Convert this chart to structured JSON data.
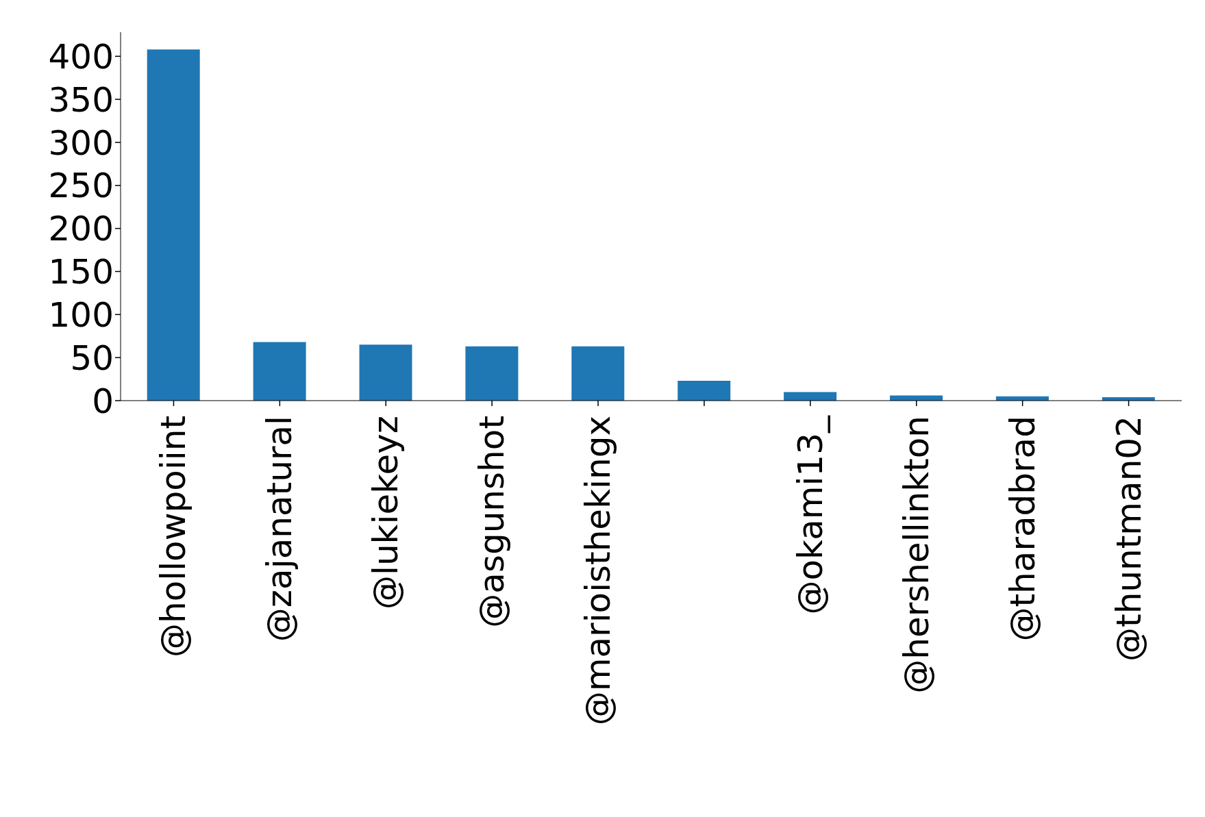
{
  "chart_data": {
    "type": "bar",
    "categories": [
      "@hollowpoiint",
      "@zajanatural",
      "@lukiekeyz",
      "@asgunshot",
      "@marioisthekingx",
      null,
      "@okami13_",
      "@hershellinkton",
      "@tharadbrad",
      "@thuntman02"
    ],
    "values": [
      408,
      68,
      65,
      63,
      63,
      23,
      10,
      6,
      5,
      4
    ],
    "color": "#1f77b4",
    "ylim": [
      0,
      428
    ],
    "yticks": [
      0,
      50,
      100,
      150,
      200,
      250,
      300,
      350,
      400
    ],
    "grid": false
  }
}
